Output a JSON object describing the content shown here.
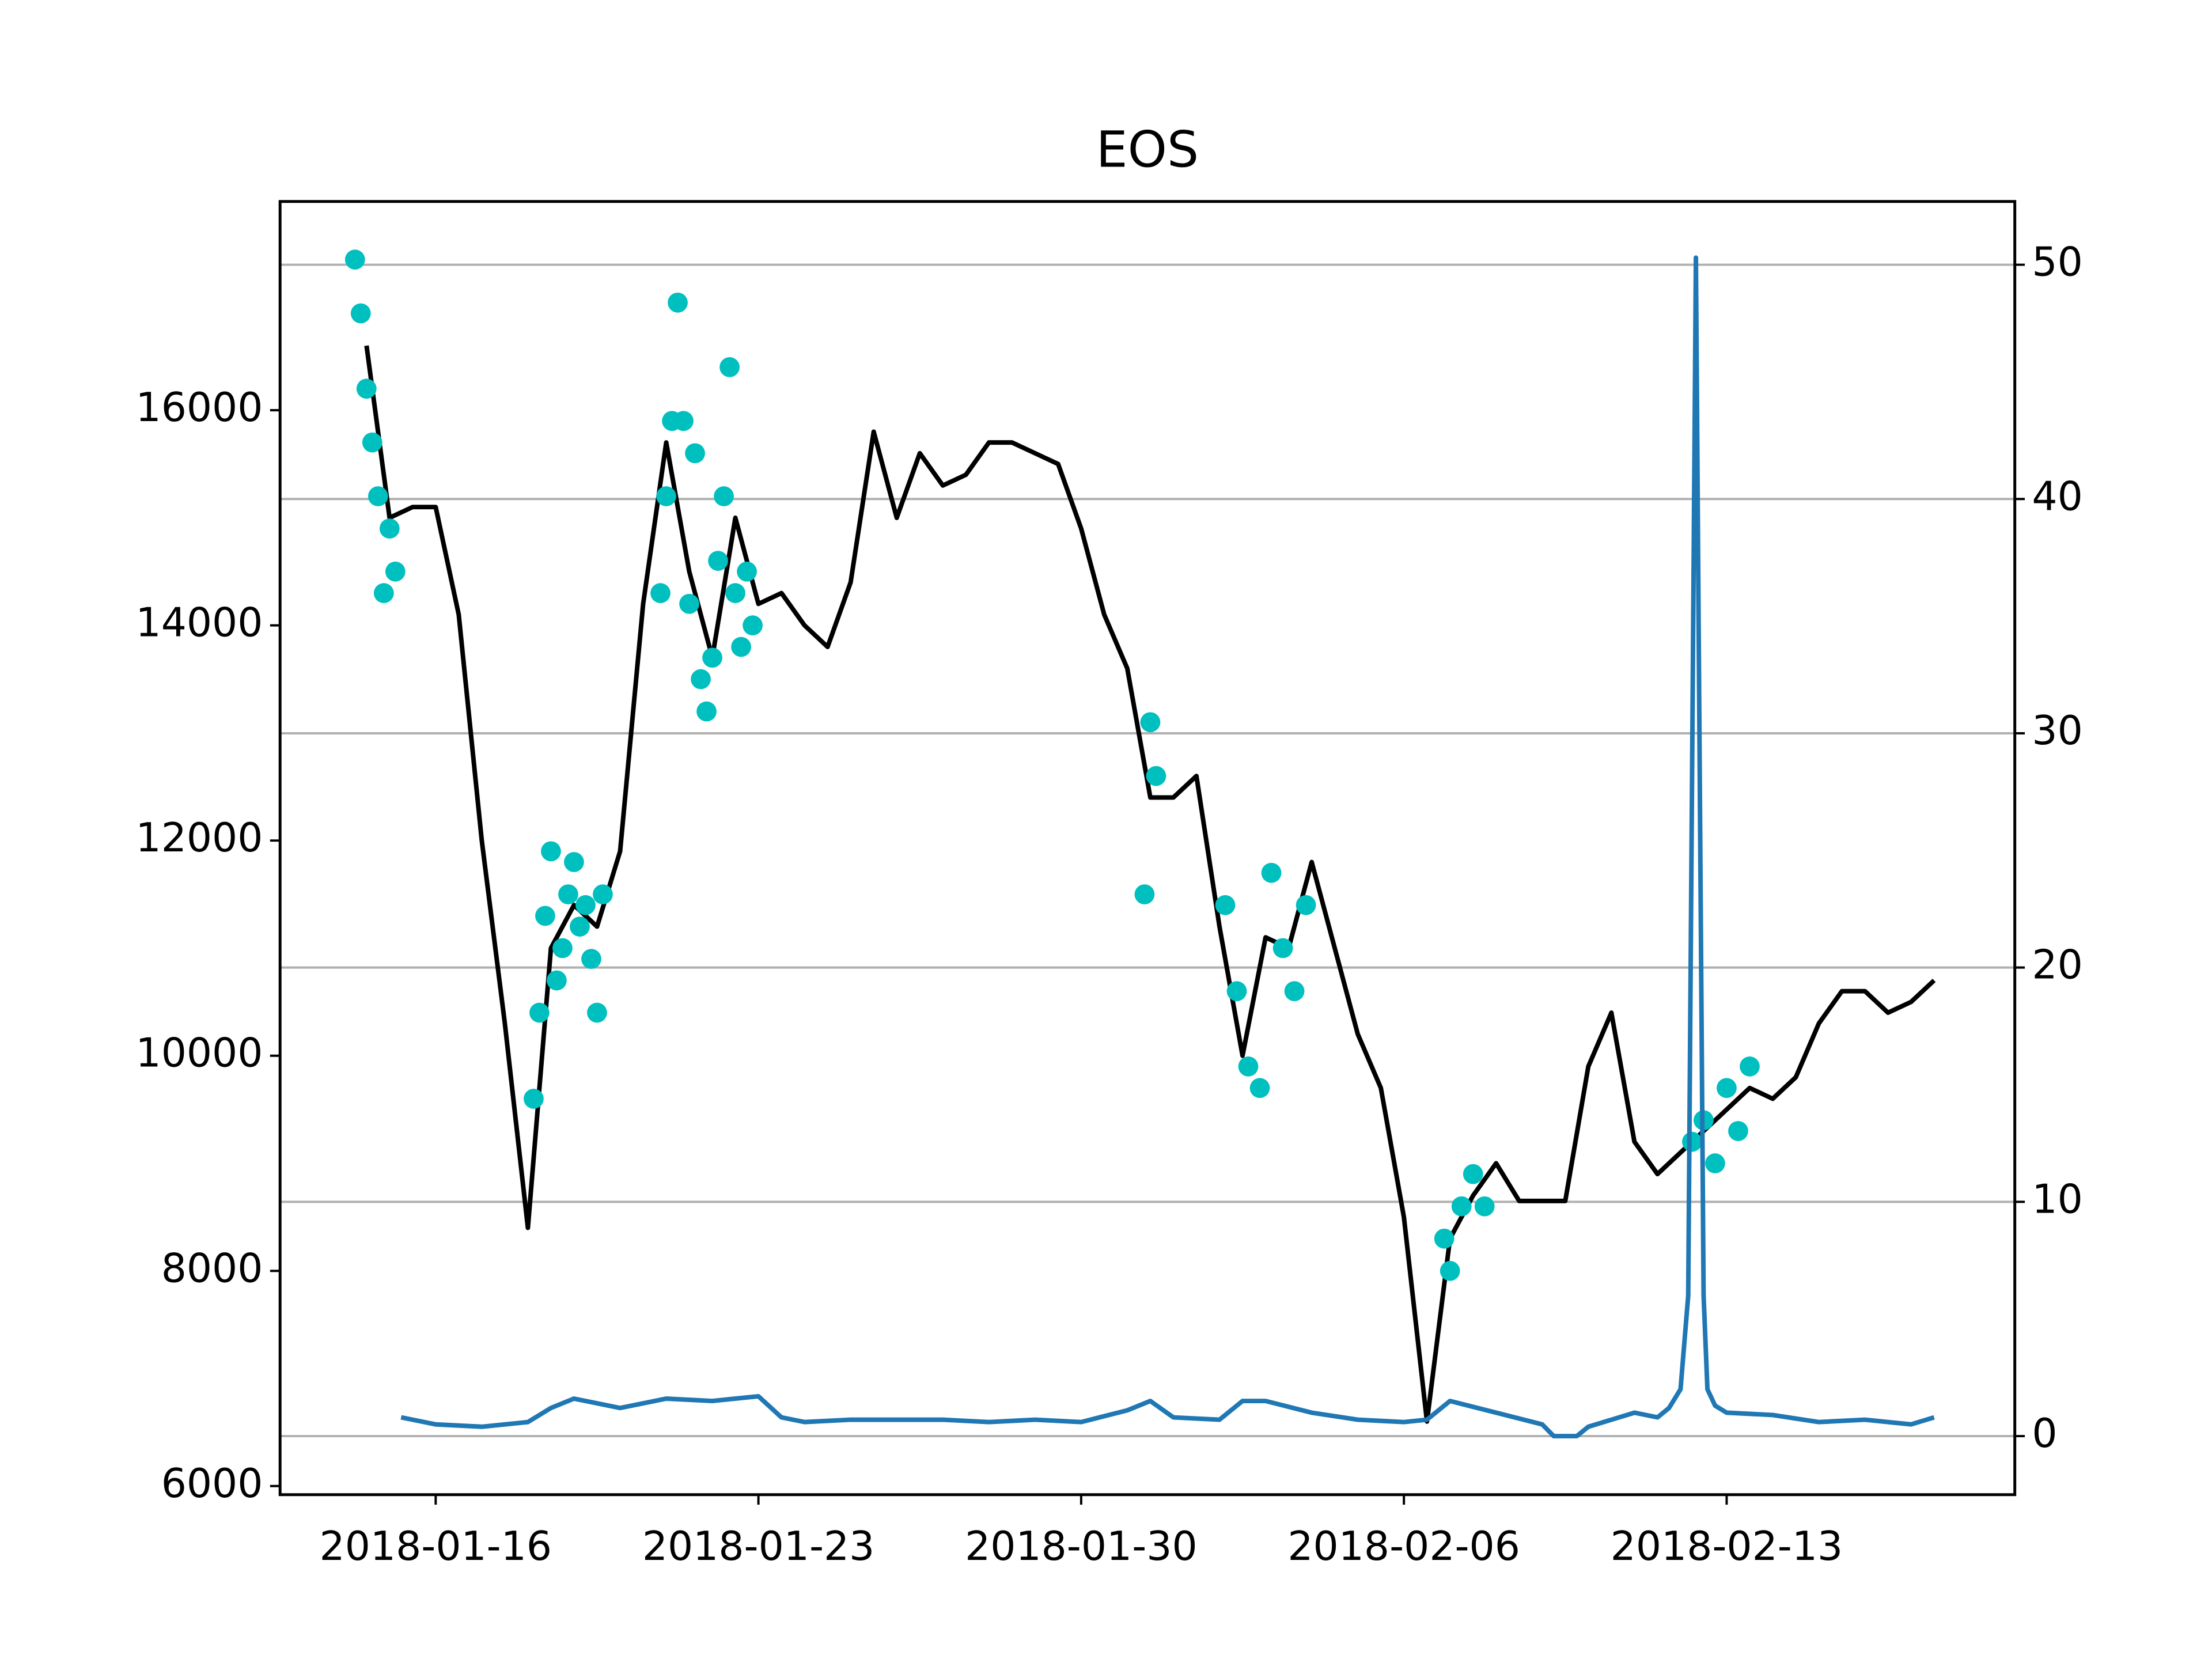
{
  "chart_data": {
    "type": "line",
    "title": "EOS",
    "xlim": [
      "2018-01-12T15:00",
      "2018-02-19T06:00"
    ],
    "xticks": [
      "2018-01-16",
      "2018-01-23",
      "2018-01-30",
      "2018-02-06",
      "2018-02-13"
    ],
    "ylim": [
      5920,
      17940
    ],
    "yticks": [
      6000,
      8000,
      10000,
      12000,
      14000,
      16000
    ],
    "y2lim": [
      -2.5,
      52.7
    ],
    "y2ticks": [
      0,
      10,
      20,
      30,
      40,
      50
    ],
    "grid": "y2",
    "series": [
      {
        "type": "line",
        "color": "#000000",
        "x": [
          "2018-01-14T12:00",
          "2018-01-15T00:00",
          "2018-01-15T12:00",
          "2018-01-16T00:00",
          "2018-01-16T12:00",
          "2018-01-17T00:00",
          "2018-01-17T12:00",
          "2018-01-18T00:00",
          "2018-01-18T12:00",
          "2018-01-19T00:00",
          "2018-01-19T12:00",
          "2018-01-20T00:00",
          "2018-01-20T12:00",
          "2018-01-21T00:00",
          "2018-01-21T12:00",
          "2018-01-22T00:00",
          "2018-01-22T12:00",
          "2018-01-23T00:00",
          "2018-01-23T12:00",
          "2018-01-24T00:00",
          "2018-01-24T12:00",
          "2018-01-25T00:00",
          "2018-01-25T12:00",
          "2018-01-26T00:00",
          "2018-01-26T12:00",
          "2018-01-27T00:00",
          "2018-01-27T12:00",
          "2018-01-28T00:00",
          "2018-01-28T12:00",
          "2018-01-29T00:00",
          "2018-01-29T12:00",
          "2018-01-30T00:00",
          "2018-01-30T12:00",
          "2018-01-31T00:00",
          "2018-01-31T12:00",
          "2018-02-01T00:00",
          "2018-02-01T12:00",
          "2018-02-02T00:00",
          "2018-02-02T12:00",
          "2018-02-03T00:00",
          "2018-02-03T12:00",
          "2018-02-04T00:00",
          "2018-02-04T12:00",
          "2018-02-05T00:00",
          "2018-02-05T12:00",
          "2018-02-06T00:00",
          "2018-02-06T12:00",
          "2018-02-07T00:00",
          "2018-02-07T12:00",
          "2018-02-08T00:00",
          "2018-02-08T12:00",
          "2018-02-09T00:00",
          "2018-02-09T12:00",
          "2018-02-10T00:00",
          "2018-02-10T12:00",
          "2018-02-11T00:00",
          "2018-02-11T12:00",
          "2018-02-12T00:00",
          "2018-02-12T12:00",
          "2018-02-13T00:00",
          "2018-02-13T12:00",
          "2018-02-14T00:00",
          "2018-02-14T12:00",
          "2018-02-15T00:00",
          "2018-02-15T12:00",
          "2018-02-16T00:00",
          "2018-02-16T12:00",
          "2018-02-17T00:00",
          "2018-02-17T12:00"
        ],
        "values": [
          16600,
          15000,
          15100,
          15100,
          14100,
          12000,
          10300,
          8400,
          11000,
          11400,
          11200,
          11900,
          14200,
          15700,
          14500,
          13700,
          15000,
          14200,
          14300,
          14000,
          13800,
          14400,
          15800,
          15000,
          15600,
          15300,
          15400,
          15700,
          15700,
          15600,
          15500,
          14900,
          14100,
          13600,
          12400,
          12400,
          12600,
          11200,
          10000,
          11100,
          11000,
          11800,
          11000,
          10200,
          9700,
          8500,
          6600,
          8300,
          8700,
          9000,
          8650,
          8650,
          8650,
          9900,
          10400,
          9200,
          8900,
          9100,
          9300,
          9500,
          9700,
          9600,
          9800,
          10300,
          10600,
          10600,
          10400,
          10500,
          10700
        ]
      },
      {
        "type": "scatter",
        "color": "#00bfbf",
        "x": [
          "2018-01-14T06:00",
          "2018-01-14T09:00",
          "2018-01-14T12:00",
          "2018-01-14T15:00",
          "2018-01-14T18:00",
          "2018-01-14T21:00",
          "2018-01-15T00:00",
          "2018-01-15T03:00",
          "2018-01-18T03:00",
          "2018-01-18T06:00",
          "2018-01-18T09:00",
          "2018-01-18T12:00",
          "2018-01-18T15:00",
          "2018-01-18T18:00",
          "2018-01-18T21:00",
          "2018-01-19T00:00",
          "2018-01-19T03:00",
          "2018-01-19T06:00",
          "2018-01-19T09:00",
          "2018-01-19T12:00",
          "2018-01-19T15:00",
          "2018-01-20T21:00",
          "2018-01-21T00:00",
          "2018-01-21T03:00",
          "2018-01-21T06:00",
          "2018-01-21T09:00",
          "2018-01-21T12:00",
          "2018-01-21T15:00",
          "2018-01-21T18:00",
          "2018-01-21T21:00",
          "2018-01-22T00:00",
          "2018-01-22T03:00",
          "2018-01-22T06:00",
          "2018-01-22T09:00",
          "2018-01-22T12:00",
          "2018-01-22T15:00",
          "2018-01-22T18:00",
          "2018-01-22T21:00",
          "2018-01-31T09:00",
          "2018-01-31T12:00",
          "2018-01-31T15:00",
          "2018-02-02T03:00",
          "2018-02-02T09:00",
          "2018-02-02T15:00",
          "2018-02-02T21:00",
          "2018-02-03T03:00",
          "2018-02-03T09:00",
          "2018-02-03T15:00",
          "2018-02-03T21:00",
          "2018-02-06T21:00",
          "2018-02-07T00:00",
          "2018-02-07T06:00",
          "2018-02-07T12:00",
          "2018-02-07T18:00",
          "2018-02-12T06:00",
          "2018-02-12T12:00",
          "2018-02-12T18:00",
          "2018-02-13T00:00",
          "2018-02-13T06:00",
          "2018-02-13T12:00"
        ],
        "values": [
          17400,
          16900,
          16200,
          15700,
          15200,
          14300,
          14900,
          14500,
          9600,
          10400,
          11300,
          11900,
          10700,
          11000,
          11500,
          11800,
          11200,
          11400,
          10900,
          10400,
          11500,
          14300,
          15200,
          15900,
          17000,
          15900,
          14200,
          15600,
          13500,
          13200,
          13700,
          14600,
          15200,
          16400,
          14300,
          13800,
          14500,
          14000,
          11500,
          13100,
          12600,
          11400,
          10600,
          9900,
          9700,
          11700,
          11000,
          10600,
          11400,
          8300,
          8000,
          8600,
          8900,
          8600,
          9200,
          9400,
          9000,
          9700,
          9300,
          9900
        ]
      },
      {
        "type": "line",
        "axis": "y2",
        "color": "#1f77b4",
        "x": [
          "2018-01-15T06:00",
          "2018-01-16T00:00",
          "2018-01-17T00:00",
          "2018-01-18T00:00",
          "2018-01-18T12:00",
          "2018-01-19T00:00",
          "2018-01-20T00:00",
          "2018-01-21T00:00",
          "2018-01-22T00:00",
          "2018-01-23T00:00",
          "2018-01-23T12:00",
          "2018-01-24T00:00",
          "2018-01-25T00:00",
          "2018-01-26T00:00",
          "2018-01-27T00:00",
          "2018-01-28T00:00",
          "2018-01-29T00:00",
          "2018-01-30T00:00",
          "2018-01-31T00:00",
          "2018-01-31T12:00",
          "2018-02-01T00:00",
          "2018-02-02T00:00",
          "2018-02-02T12:00",
          "2018-02-03T00:00",
          "2018-02-04T00:00",
          "2018-02-05T00:00",
          "2018-02-06T00:00",
          "2018-02-06T12:00",
          "2018-02-07T00:00",
          "2018-02-08T00:00",
          "2018-02-09T00:00",
          "2018-02-09T06:00",
          "2018-02-09T18:00",
          "2018-02-10T00:00",
          "2018-02-11T00:00",
          "2018-02-11T12:00",
          "2018-02-11T18:00",
          "2018-02-12T00:00",
          "2018-02-12T04:00",
          "2018-02-12T08:00",
          "2018-02-12T12:00",
          "2018-02-12T14:00",
          "2018-02-12T18:00",
          "2018-02-13T00:00",
          "2018-02-14T00:00",
          "2018-02-15T00:00",
          "2018-02-16T00:00",
          "2018-02-17T00:00",
          "2018-02-17T12:00"
        ],
        "values": [
          0.8,
          0.5,
          0.4,
          0.6,
          1.2,
          1.6,
          1.2,
          1.6,
          1.5,
          1.7,
          0.8,
          0.6,
          0.7,
          0.7,
          0.7,
          0.6,
          0.7,
          0.6,
          1.1,
          1.5,
          0.8,
          0.7,
          1.5,
          1.5,
          1.0,
          0.7,
          0.6,
          0.7,
          1.5,
          1.0,
          0.5,
          0.0,
          0.0,
          0.4,
          1.0,
          0.8,
          1.2,
          2.0,
          6.0,
          50.3,
          6.0,
          2.0,
          1.3,
          1.0,
          0.9,
          0.6,
          0.7,
          0.5,
          0.8
        ]
      }
    ]
  }
}
